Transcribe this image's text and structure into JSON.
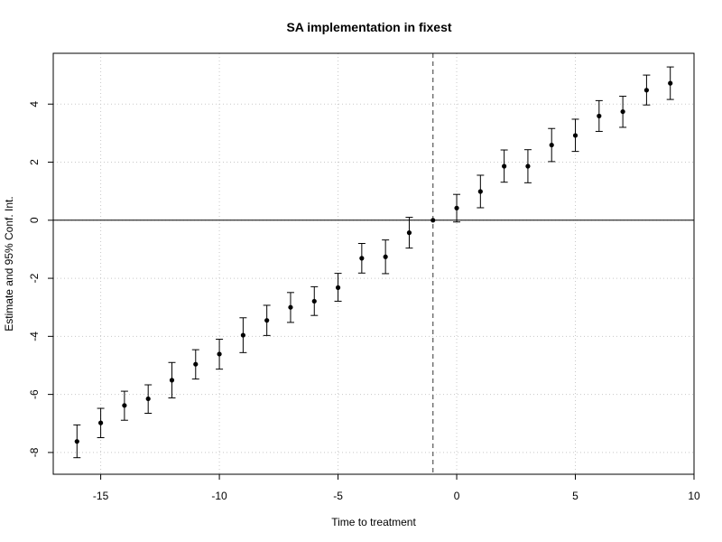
{
  "chart_data": {
    "type": "scatter",
    "title": "SA implementation in fixest",
    "xlabel": "Time to treatment",
    "ylabel": "Estimate and 95% Conf. Int.",
    "xlim": [
      -17,
      10
    ],
    "ylim": [
      -8.75,
      5.75
    ],
    "x_ticks": [
      -15,
      -10,
      -5,
      0,
      5,
      10
    ],
    "y_ticks": [
      -8,
      -6,
      -4,
      -2,
      0,
      2,
      4
    ],
    "grid": true,
    "reference_x": -1,
    "reference_y": 0,
    "series": [
      {
        "points": [
          {
            "x": -16,
            "y": -7.62,
            "lo": -8.18,
            "hi": -7.05
          },
          {
            "x": -15,
            "y": -6.98,
            "lo": -7.49,
            "hi": -6.48
          },
          {
            "x": -14,
            "y": -6.38,
            "lo": -6.89,
            "hi": -5.89
          },
          {
            "x": -13,
            "y": -6.15,
            "lo": -6.65,
            "hi": -5.67
          },
          {
            "x": -12,
            "y": -5.51,
            "lo": -6.12,
            "hi": -4.9
          },
          {
            "x": -11,
            "y": -4.96,
            "lo": -5.47,
            "hi": -4.46
          },
          {
            "x": -10,
            "y": -4.61,
            "lo": -5.13,
            "hi": -4.1
          },
          {
            "x": -9,
            "y": -3.96,
            "lo": -4.56,
            "hi": -3.36
          },
          {
            "x": -8,
            "y": -3.45,
            "lo": -3.97,
            "hi": -2.93
          },
          {
            "x": -7,
            "y": -3.0,
            "lo": -3.52,
            "hi": -2.49
          },
          {
            "x": -6,
            "y": -2.79,
            "lo": -3.28,
            "hi": -2.29
          },
          {
            "x": -5,
            "y": -2.32,
            "lo": -2.79,
            "hi": -1.83
          },
          {
            "x": -4,
            "y": -1.31,
            "lo": -1.82,
            "hi": -0.8
          },
          {
            "x": -3,
            "y": -1.26,
            "lo": -1.84,
            "hi": -0.68
          },
          {
            "x": -2,
            "y": -0.43,
            "lo": -0.96,
            "hi": 0.1
          },
          {
            "x": -1,
            "y": 0.0,
            "lo": 0.0,
            "hi": 0.0
          },
          {
            "x": 0,
            "y": 0.42,
            "lo": -0.06,
            "hi": 0.89
          },
          {
            "x": 1,
            "y": 0.99,
            "lo": 0.43,
            "hi": 1.55
          },
          {
            "x": 2,
            "y": 1.86,
            "lo": 1.31,
            "hi": 2.42
          },
          {
            "x": 3,
            "y": 1.86,
            "lo": 1.29,
            "hi": 2.43
          },
          {
            "x": 4,
            "y": 2.59,
            "lo": 2.02,
            "hi": 3.16
          },
          {
            "x": 5,
            "y": 2.92,
            "lo": 2.37,
            "hi": 3.48
          },
          {
            "x": 6,
            "y": 3.59,
            "lo": 3.06,
            "hi": 4.12
          },
          {
            "x": 7,
            "y": 3.74,
            "lo": 3.2,
            "hi": 4.27
          },
          {
            "x": 8,
            "y": 4.48,
            "lo": 3.97,
            "hi": 5.0
          },
          {
            "x": 9,
            "y": 4.72,
            "lo": 4.16,
            "hi": 5.28
          }
        ]
      }
    ]
  }
}
